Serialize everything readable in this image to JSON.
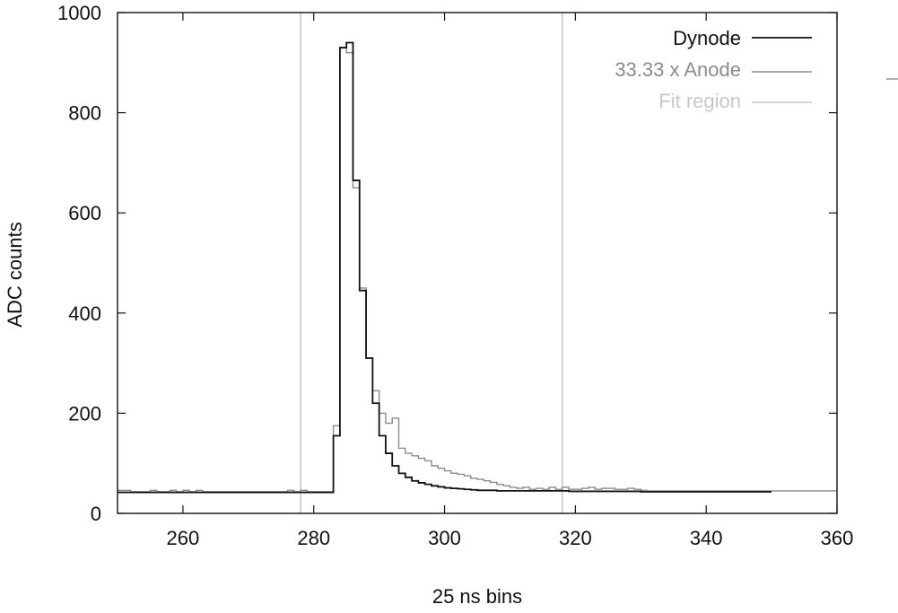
{
  "chart_data": {
    "type": "line",
    "title": "",
    "xlabel": "25 ns bins",
    "ylabel": "ADC counts",
    "xlim": [
      250,
      360
    ],
    "ylim": [
      0,
      1000
    ],
    "x_ticks": [
      260,
      280,
      300,
      320,
      340,
      360
    ],
    "y_ticks": [
      0,
      200,
      400,
      600,
      800,
      1000
    ],
    "grid": false,
    "legend_position": "top-right",
    "fit_region": [
      278,
      318
    ],
    "series": [
      {
        "name": "Dynode",
        "color": "#111111",
        "style": "step",
        "bin_width": 1,
        "x": [
          250,
          251,
          252,
          253,
          254,
          255,
          256,
          257,
          258,
          259,
          260,
          261,
          262,
          263,
          264,
          265,
          266,
          267,
          268,
          269,
          270,
          271,
          272,
          273,
          274,
          275,
          276,
          277,
          278,
          279,
          280,
          281,
          282,
          283,
          284,
          285,
          286,
          287,
          288,
          289,
          290,
          291,
          292,
          293,
          294,
          295,
          296,
          297,
          298,
          299,
          300,
          301,
          302,
          303,
          304,
          305,
          306,
          307,
          308,
          309,
          310,
          311,
          312,
          313,
          314,
          315,
          316,
          317,
          318,
          319,
          320,
          321,
          322,
          323,
          324,
          325,
          326,
          327,
          328,
          329,
          330,
          331,
          332,
          333,
          334,
          335,
          336,
          337,
          338,
          339,
          340,
          341,
          342,
          343,
          344,
          345,
          346,
          347,
          348,
          349
        ],
        "values": [
          42,
          42,
          42,
          42,
          42,
          42,
          42,
          42,
          42,
          42,
          42,
          42,
          42,
          42,
          42,
          42,
          42,
          42,
          42,
          42,
          42,
          42,
          42,
          42,
          42,
          42,
          42,
          42,
          42,
          42,
          42,
          42,
          42,
          155,
          930,
          940,
          665,
          445,
          310,
          220,
          155,
          120,
          95,
          80,
          72,
          65,
          61,
          58,
          55,
          53,
          51,
          50,
          49,
          48,
          47,
          46,
          46,
          46,
          45,
          45,
          45,
          45,
          45,
          45,
          45,
          45,
          45,
          45,
          45,
          44,
          44,
          44,
          44,
          44,
          44,
          44,
          44,
          44,
          44,
          44,
          43,
          43,
          43,
          43,
          43,
          43,
          43,
          43,
          43,
          43,
          43,
          43,
          43,
          43,
          43,
          43,
          43,
          43,
          43,
          43
        ]
      },
      {
        "name": "33.33 x Anode",
        "color": "#8c8c8c",
        "style": "step",
        "bin_width": 1,
        "x": [
          250,
          251,
          252,
          253,
          254,
          255,
          256,
          257,
          258,
          259,
          260,
          261,
          262,
          263,
          264,
          265,
          266,
          267,
          268,
          269,
          270,
          271,
          272,
          273,
          274,
          275,
          276,
          277,
          278,
          279,
          280,
          281,
          282,
          283,
          284,
          285,
          286,
          287,
          288,
          289,
          290,
          291,
          292,
          293,
          294,
          295,
          296,
          297,
          298,
          299,
          300,
          301,
          302,
          303,
          304,
          305,
          306,
          307,
          308,
          309,
          310,
          311,
          312,
          313,
          314,
          315,
          316,
          317,
          318,
          319,
          320,
          321,
          322,
          323,
          324,
          325,
          326,
          327,
          328,
          329,
          330,
          331,
          332,
          333,
          334,
          335,
          336,
          337,
          338,
          339,
          340,
          341,
          342,
          343,
          344,
          345,
          346,
          347,
          348,
          349,
          350,
          351,
          352,
          353,
          354,
          355,
          356,
          357,
          358,
          359
        ],
        "values": [
          46,
          46,
          43,
          43,
          43,
          46,
          43,
          43,
          46,
          43,
          46,
          43,
          46,
          43,
          43,
          43,
          43,
          43,
          43,
          43,
          43,
          43,
          43,
          43,
          43,
          43,
          46,
          43,
          46,
          43,
          43,
          43,
          43,
          175,
          930,
          920,
          650,
          450,
          310,
          245,
          200,
          180,
          190,
          130,
          120,
          115,
          110,
          105,
          95,
          90,
          85,
          80,
          78,
          75,
          70,
          68,
          65,
          62,
          58,
          55,
          52,
          50,
          52,
          48,
          50,
          48,
          52,
          48,
          52,
          48,
          48,
          50,
          52,
          48,
          50,
          50,
          48,
          48,
          50,
          48,
          46,
          45,
          45,
          45,
          45,
          45,
          45,
          45,
          45,
          45,
          45,
          45,
          45,
          45,
          45,
          45,
          45,
          45,
          45,
          45,
          45,
          45,
          45,
          45,
          45,
          45,
          45,
          45,
          45,
          45
        ]
      }
    ],
    "legend": [
      {
        "label": "Dynode",
        "color": "#111111"
      },
      {
        "label": "33.33 x Anode",
        "color": "#8c8c8c"
      },
      {
        "label": "Fit region",
        "color": "#c8c8c8"
      }
    ]
  }
}
